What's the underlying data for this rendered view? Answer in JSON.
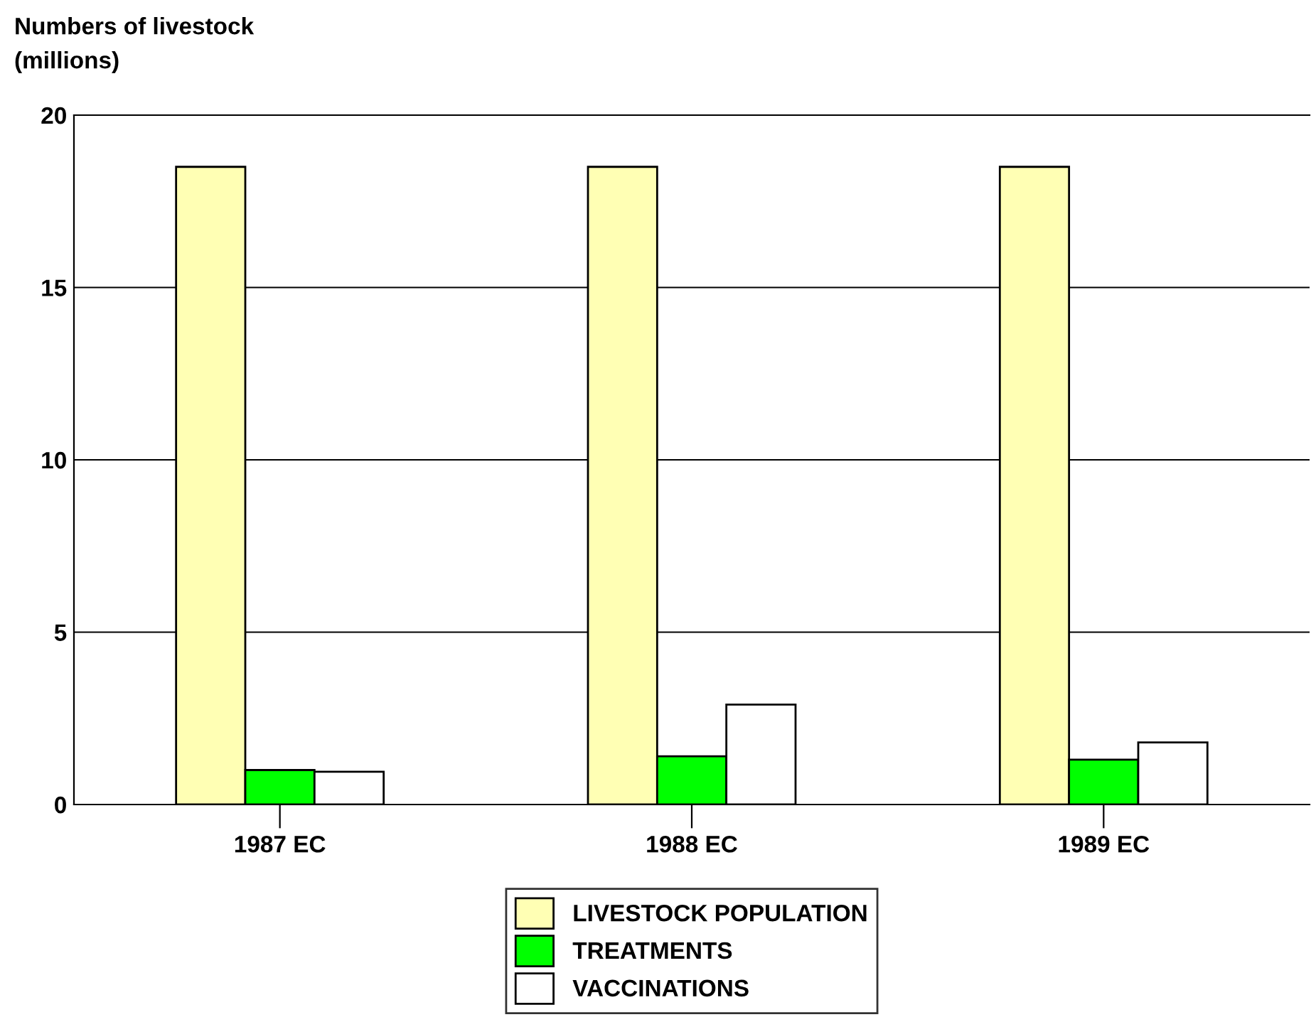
{
  "chart_data": {
    "type": "bar",
    "ylabel": "Numbers of livestock\n(millions)",
    "categories": [
      "1987 EC",
      "1988 EC",
      "1989 EC"
    ],
    "series": [
      {
        "name": "LIVESTOCK POPULATION",
        "color": "#ffffb4",
        "values": [
          18.5,
          18.5,
          18.5
        ]
      },
      {
        "name": "TREATMENTS",
        "color": "#00ff00",
        "values": [
          1.0,
          1.4,
          1.3
        ]
      },
      {
        "name": "VACCINATIONS",
        "color": "#ffffff",
        "values": [
          0.95,
          2.9,
          1.8
        ]
      }
    ],
    "ylim": [
      0,
      20
    ],
    "yticks": [
      0,
      5,
      10,
      15,
      20
    ],
    "grid": "y",
    "legend": "bottom"
  }
}
